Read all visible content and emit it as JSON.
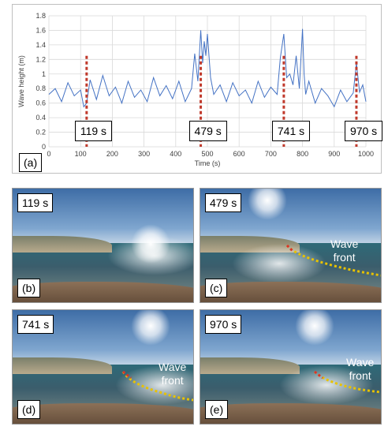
{
  "chart_data": {
    "type": "line",
    "xlabel": "Time (s)",
    "ylabel": "Wave height (m)",
    "xlim": [
      0,
      1000
    ],
    "ylim": [
      0,
      1.8
    ],
    "xticks": [
      0,
      100,
      200,
      300,
      400,
      500,
      600,
      700,
      800,
      900,
      1000
    ],
    "yticks": [
      0,
      0.2,
      0.4,
      0.6,
      0.8,
      1,
      1.2,
      1.4,
      1.6,
      1.8
    ],
    "ytick_labels": [
      "0",
      "0.2",
      "0.4",
      "0.6",
      "0.8",
      "1",
      "1.2",
      "1.4",
      "1.6",
      "1.8"
    ],
    "grid": true,
    "line_color": "#4472c4",
    "series": [
      {
        "x": [
          0,
          20,
          40,
          60,
          80,
          100,
          110,
          119,
          130,
          150,
          170,
          190,
          210,
          230,
          250,
          270,
          290,
          310,
          330,
          350,
          370,
          390,
          410,
          430,
          450,
          460,
          470,
          479,
          485,
          490,
          495,
          500,
          510,
          520,
          540,
          560,
          580,
          600,
          620,
          640,
          660,
          680,
          700,
          720,
          730,
          741,
          750,
          760,
          770,
          780,
          790,
          800,
          805,
          810,
          820,
          840,
          860,
          880,
          900,
          920,
          940,
          960,
          970,
          980,
          990,
          1000
        ],
        "values": [
          0.72,
          0.8,
          0.62,
          0.88,
          0.7,
          0.78,
          0.55,
          0.6,
          0.92,
          0.65,
          0.98,
          0.7,
          0.82,
          0.6,
          0.9,
          0.68,
          0.78,
          0.62,
          0.95,
          0.7,
          0.84,
          0.66,
          0.9,
          0.62,
          0.8,
          1.28,
          0.9,
          1.6,
          1.15,
          1.45,
          1.25,
          1.55,
          0.95,
          0.72,
          0.85,
          0.62,
          0.88,
          0.7,
          0.78,
          0.6,
          0.9,
          0.68,
          0.82,
          0.72,
          1.22,
          1.55,
          0.95,
          1.0,
          0.85,
          1.25,
          0.8,
          1.62,
          1.0,
          0.72,
          0.9,
          0.6,
          0.8,
          0.7,
          0.55,
          0.78,
          0.62,
          0.74,
          1.15,
          0.75,
          0.85,
          0.62
        ]
      }
    ],
    "markers": [
      {
        "x": 119,
        "label": "119 s"
      },
      {
        "x": 479,
        "label": "479 s"
      },
      {
        "x": 741,
        "label": "741 s"
      },
      {
        "x": 970,
        "label": "970 s"
      }
    ],
    "marker_color": "#c0392b"
  },
  "chart_label": "(a)",
  "photos": [
    {
      "time": "119 s",
      "letter": "(b)",
      "wave_text": "",
      "has_front": false
    },
    {
      "time": "479 s",
      "letter": "(c)",
      "wave_text": "Wave\nfront",
      "has_front": true
    },
    {
      "time": "741 s",
      "letter": "(d)",
      "wave_text": "Wave\nfront",
      "has_front": true
    },
    {
      "time": "970 s",
      "letter": "(e)",
      "wave_text": "Wave\nfront",
      "has_front": true
    }
  ]
}
